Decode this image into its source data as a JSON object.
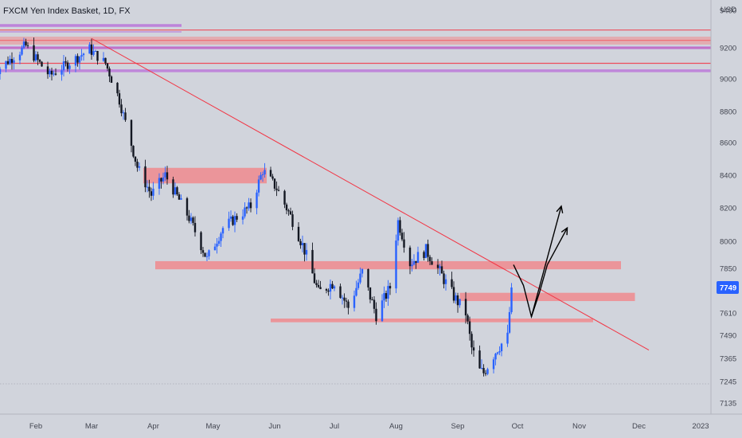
{
  "header": {
    "title": "FXCM Yen Index Basket, 1D, FX"
  },
  "colors": {
    "background": "#d1d4dc",
    "bull": "#2962ff",
    "bear": "#131722",
    "zone": "#f08a8e",
    "line": "#f23645",
    "purple": "#b86ed9",
    "arrow": "#000000",
    "price_tag": "#2962ff"
  },
  "chart_data": {
    "type": "candlestick",
    "title": "FXCM Yen Index Basket, 1D, FX",
    "ylabel": "USD",
    "ylim": [
      7060,
      9440
    ],
    "y_ticks": [
      "9400",
      "9200",
      "9000",
      "8800",
      "8600",
      "8400",
      "8200",
      "8000",
      "7850",
      "7749",
      "7610",
      "7490",
      "7365",
      "7245",
      "7135"
    ],
    "x_ticks": [
      "Feb",
      "Mar",
      "Apr",
      "May",
      "Jun",
      "Jul",
      "Aug",
      "Sep",
      "Oct",
      "Nov",
      "Dec",
      "2023"
    ],
    "current_price": "7749",
    "series": [
      {
        "values": [
          {
            "date": "2022-01-13",
            "close": 9060
          },
          {
            "date": "2022-01-27",
            "close": 9210
          },
          {
            "date": "2022-02-08",
            "close": 9020
          },
          {
            "date": "2022-02-28",
            "close": 9190
          },
          {
            "date": "2022-03-08",
            "close": 9100
          },
          {
            "date": "2022-03-15",
            "close": 8870
          },
          {
            "date": "2022-03-24",
            "close": 8450
          },
          {
            "date": "2022-03-31",
            "close": 8280
          },
          {
            "date": "2022-04-07",
            "close": 8400
          },
          {
            "date": "2022-04-19",
            "close": 8140
          },
          {
            "date": "2022-04-28",
            "close": 7900
          },
          {
            "date": "2022-05-06",
            "close": 8080
          },
          {
            "date": "2022-05-20",
            "close": 8210
          },
          {
            "date": "2022-05-26",
            "close": 8430
          },
          {
            "date": "2022-06-02",
            "close": 8320
          },
          {
            "date": "2022-06-09",
            "close": 8150
          },
          {
            "date": "2022-06-16",
            "close": 7950
          },
          {
            "date": "2022-06-23",
            "close": 7720
          },
          {
            "date": "2022-07-01",
            "close": 7780
          },
          {
            "date": "2022-07-08",
            "close": 7640
          },
          {
            "date": "2022-07-15",
            "close": 7830
          },
          {
            "date": "2022-07-22",
            "close": 7600
          },
          {
            "date": "2022-07-29",
            "close": 7750
          },
          {
            "date": "2022-08-02",
            "close": 8120
          },
          {
            "date": "2022-08-08",
            "close": 7880
          },
          {
            "date": "2022-08-16",
            "close": 7950
          },
          {
            "date": "2022-08-23",
            "close": 7830
          },
          {
            "date": "2022-08-30",
            "close": 7700
          },
          {
            "date": "2022-09-05",
            "close": 7610
          },
          {
            "date": "2022-09-08",
            "close": 7420
          },
          {
            "date": "2022-09-12",
            "close": 7300
          },
          {
            "date": "2022-09-14",
            "close": 7290
          },
          {
            "date": "2022-09-21",
            "close": 7420
          },
          {
            "date": "2022-09-26",
            "close": 7480
          },
          {
            "date": "2022-09-28",
            "close": 7749
          }
        ]
      }
    ],
    "zones": [
      {
        "x0": "2022-03-27",
        "x1": "2022-05-28",
        "y0": 8350,
        "y1": 8445
      },
      {
        "x0": "2022-04-02",
        "x1": "2022-11-22",
        "y0": 7845,
        "y1": 7890
      },
      {
        "x0": "2022-09-02",
        "x1": "2022-11-29",
        "y0": 7675,
        "y1": 7720
      },
      {
        "x0": "2022-05-30",
        "x1": "2022-11-08",
        "y0": 7560,
        "y1": 7580
      }
    ],
    "levels": [
      {
        "y": 9295,
        "color": "#f23645"
      },
      {
        "y": 9240,
        "color": "#f23645"
      },
      {
        "y": 9200,
        "color": "#f23645"
      },
      {
        "y": 9100,
        "color": "#f23645"
      },
      {
        "y": 9052,
        "color": "#b86ed9"
      },
      {
        "y": 9200,
        "color": "#b86ed9"
      }
    ],
    "trendline": {
      "x0": "2022-03-01",
      "y0": 9250,
      "x1": "2022-12-06",
      "y1": 7410
    },
    "projection": [
      {
        "date": "2022-09-29",
        "price": 7870
      },
      {
        "date": "2022-10-04",
        "price": 7760
      },
      {
        "date": "2022-10-08",
        "price": 7590
      },
      {
        "date": "2022-10-12",
        "price": 7720
      },
      {
        "date": "2022-10-16",
        "price": 7870
      },
      {
        "date": "2022-10-25",
        "price": 8150
      }
    ]
  }
}
